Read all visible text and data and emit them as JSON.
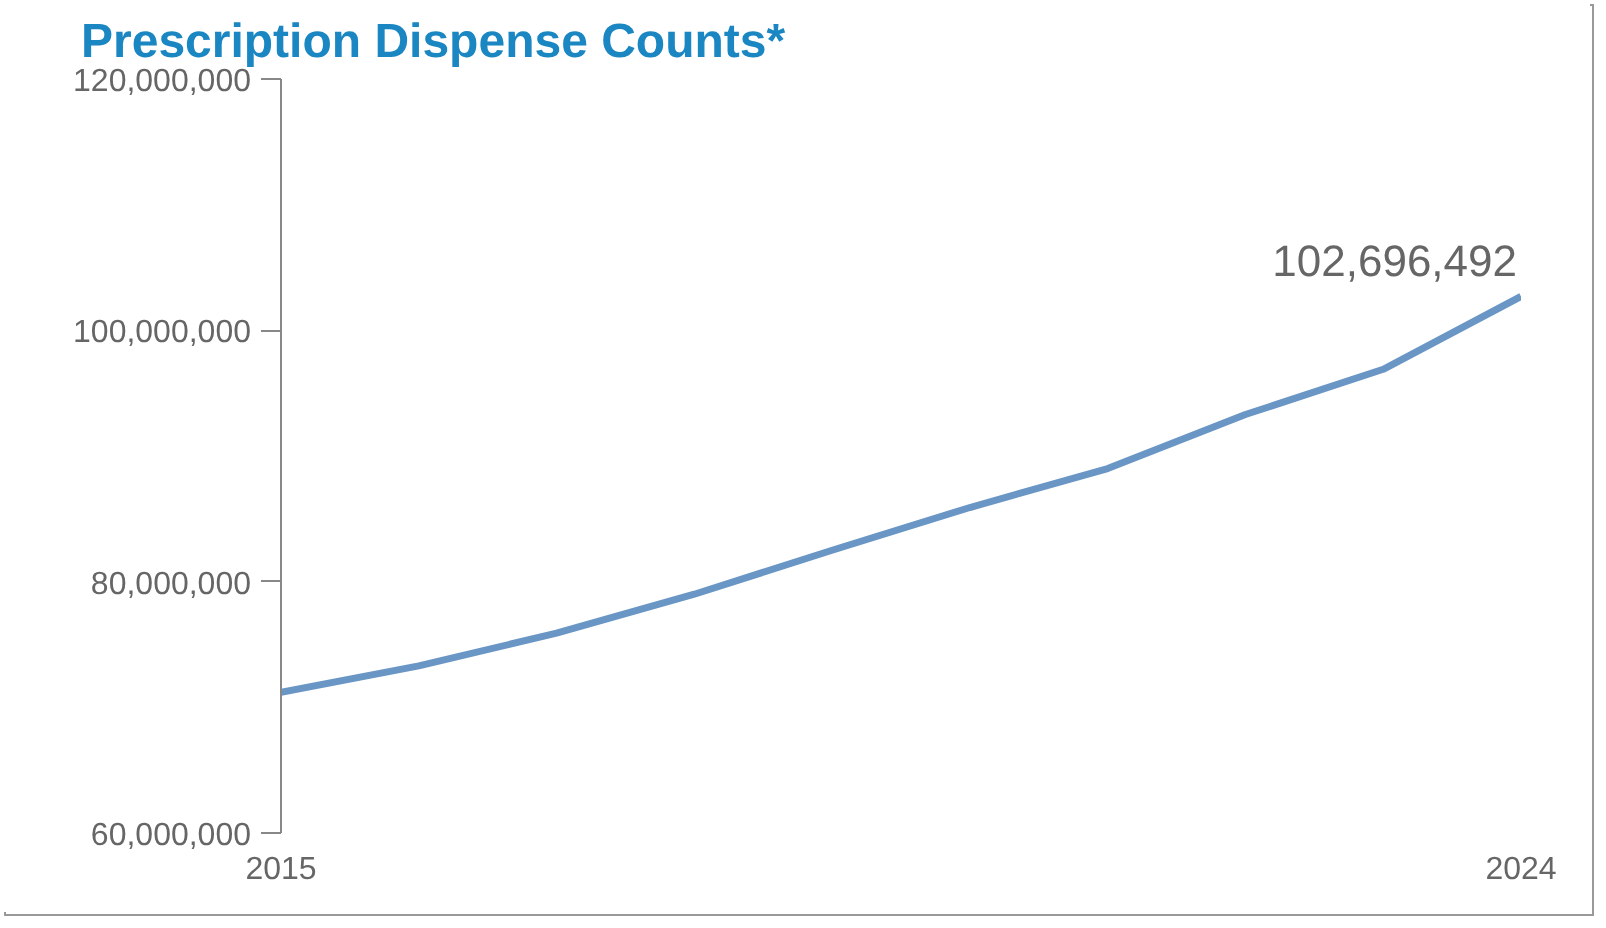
{
  "chart_data": {
    "type": "line",
    "title": "Prescription Dispense Counts*",
    "x": [
      2015,
      2016,
      2017,
      2018,
      2019,
      2020,
      2021,
      2022,
      2023,
      2024
    ],
    "series": [
      {
        "color": "#6a96c5",
        "values": [
          71200000,
          73300000,
          75900000,
          79000000,
          82500000,
          85900000,
          89000000,
          93300000,
          96900000,
          102696492
        ],
        "value_labels": [
          null,
          null,
          null,
          null,
          null,
          null,
          null,
          null,
          null,
          "102,696,492"
        ]
      }
    ],
    "xlim": [
      2015,
      2024
    ],
    "xticks": [
      2015,
      2024
    ],
    "ylim": [
      60000000,
      120000000
    ],
    "yticks": [
      {
        "value": 60000000,
        "label": "60,000,000"
      },
      {
        "value": 80000000,
        "label": "80,000,000"
      },
      {
        "value": 100000000,
        "label": "100,000,000"
      },
      {
        "value": 120000000,
        "label": "120,000,000"
      }
    ],
    "grid": false,
    "marker": "none",
    "line_style": "solid"
  }
}
